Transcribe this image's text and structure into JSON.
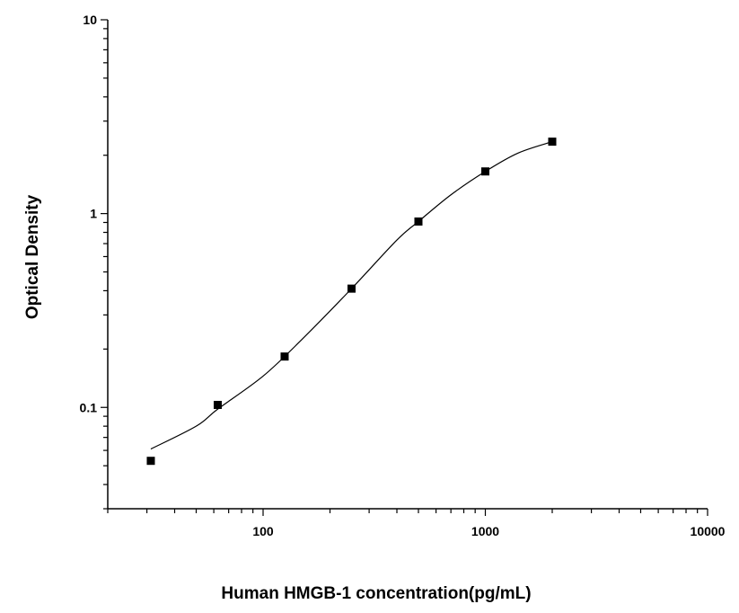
{
  "chart_data": {
    "type": "scatter",
    "title": "",
    "xlabel": "Human HMGB-1 concentration(pg/mL)",
    "ylabel": "Optical Density",
    "x_scale": "log",
    "y_scale": "log",
    "xlim": [
      20,
      10000
    ],
    "ylim": [
      0.03,
      10
    ],
    "x_ticks": [
      "100",
      "1000",
      "10000"
    ],
    "y_ticks": [
      "10",
      "1",
      "0.1"
    ],
    "grid": false,
    "legend": "none",
    "series": [
      {
        "points": [
          {
            "x": 31.25,
            "y": 0.053
          },
          {
            "x": 62.5,
            "y": 0.103
          },
          {
            "x": 125,
            "y": 0.183
          },
          {
            "x": 250,
            "y": 0.41
          },
          {
            "x": 500,
            "y": 0.91
          },
          {
            "x": 1000,
            "y": 1.65
          },
          {
            "x": 2000,
            "y": 2.35
          }
        ]
      }
    ],
    "fit_curve": [
      {
        "x": 31.25,
        "y": 0.061
      },
      {
        "x": 50,
        "y": 0.08
      },
      {
        "x": 62.5,
        "y": 0.098
      },
      {
        "x": 100,
        "y": 0.145
      },
      {
        "x": 150,
        "y": 0.225
      },
      {
        "x": 250,
        "y": 0.41
      },
      {
        "x": 400,
        "y": 0.73
      },
      {
        "x": 500,
        "y": 0.91
      },
      {
        "x": 700,
        "y": 1.25
      },
      {
        "x": 1000,
        "y": 1.65
      },
      {
        "x": 1400,
        "y": 2.05
      },
      {
        "x": 2000,
        "y": 2.35
      }
    ],
    "colors": {
      "marker": "#000000",
      "line": "#000000",
      "axis": "#000000"
    }
  }
}
